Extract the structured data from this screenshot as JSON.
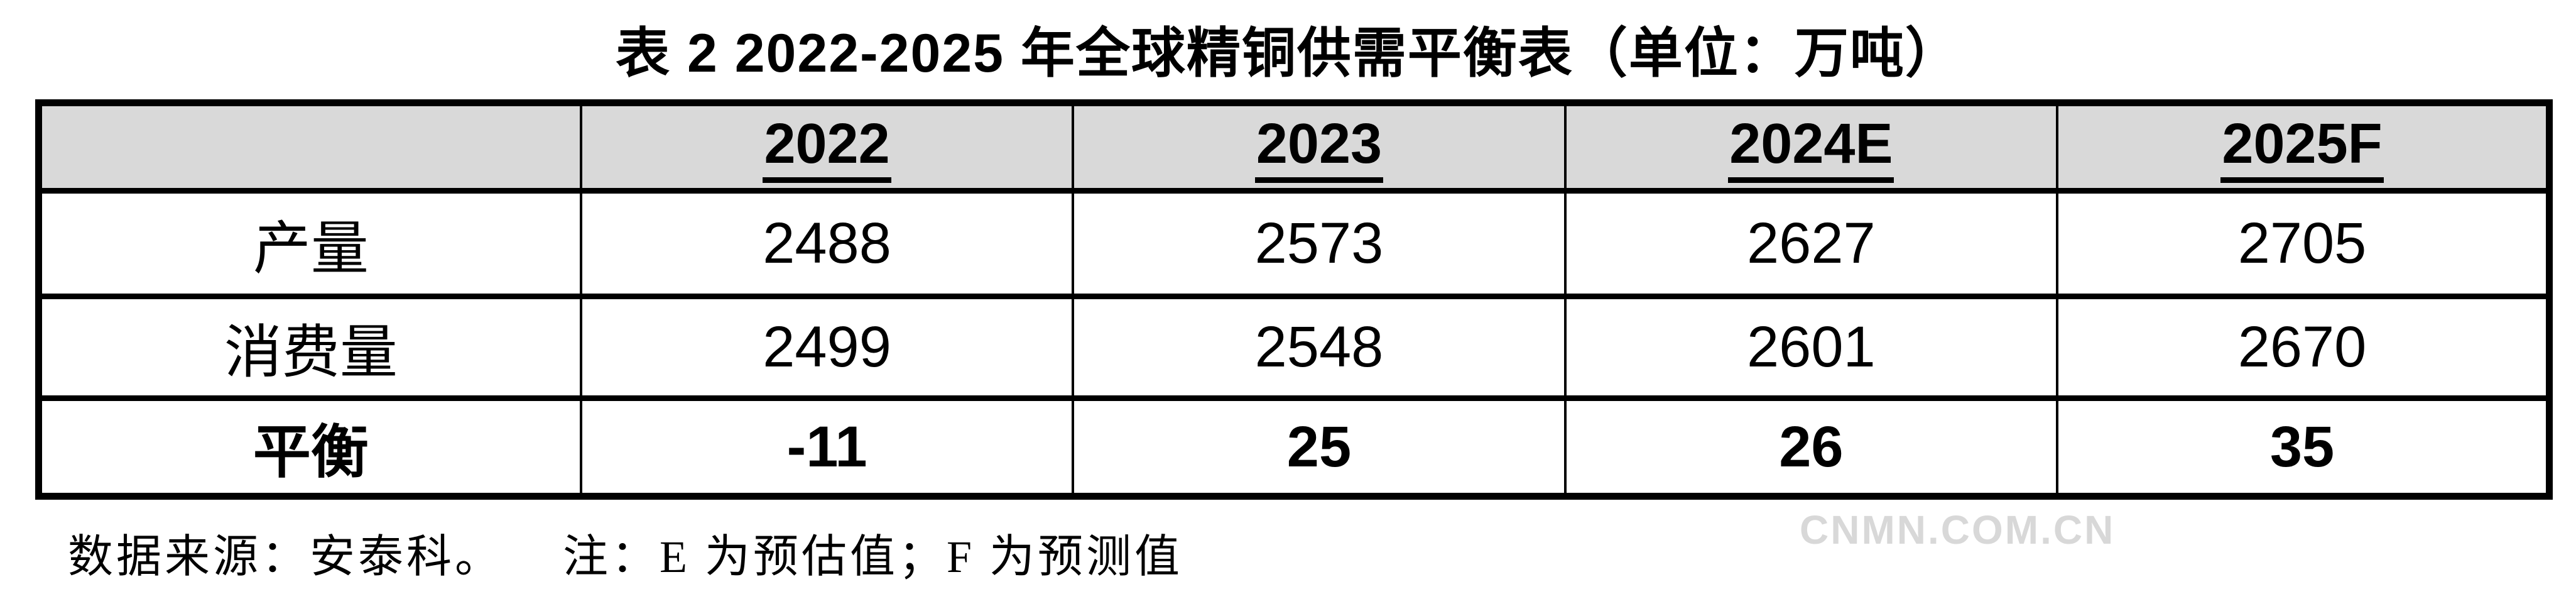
{
  "title": "表 2 2022-2025 年全球精铜供需平衡表（单位：万吨）",
  "table": {
    "header": [
      "",
      "2022",
      "2023",
      "2024E",
      "2025F"
    ],
    "rows": [
      {
        "label": "产量",
        "values": [
          "2488",
          "2573",
          "2627",
          "2705"
        ]
      },
      {
        "label": "消费量",
        "values": [
          "2499",
          "2548",
          "2601",
          "2670"
        ]
      },
      {
        "label": "平衡",
        "values": [
          "-11",
          "25",
          "26",
          "35"
        ]
      }
    ],
    "header_bg": "#d9d9d9",
    "border_color": "#000000"
  },
  "footer": {
    "source": "数据来源：安泰科。",
    "note": "注：E 为预估值；F 为预测值"
  },
  "watermark": {
    "text": "CNMN.COM.CN",
    "color": "#d8d8d8"
  },
  "chart_data": {
    "type": "table",
    "title": "表 2 2022-2025 年全球精铜供需平衡表（单位：万吨）",
    "columns": [
      "",
      "2022",
      "2023",
      "2024E",
      "2025F"
    ],
    "series": [
      {
        "name": "产量",
        "values": [
          2488,
          2573,
          2627,
          2705
        ]
      },
      {
        "name": "消费量",
        "values": [
          2499,
          2548,
          2601,
          2670
        ]
      },
      {
        "name": "平衡",
        "values": [
          -11,
          25,
          26,
          35
        ]
      }
    ],
    "notes": "数据来源：安泰科。 注：E 为预估值；F 为预测值"
  }
}
